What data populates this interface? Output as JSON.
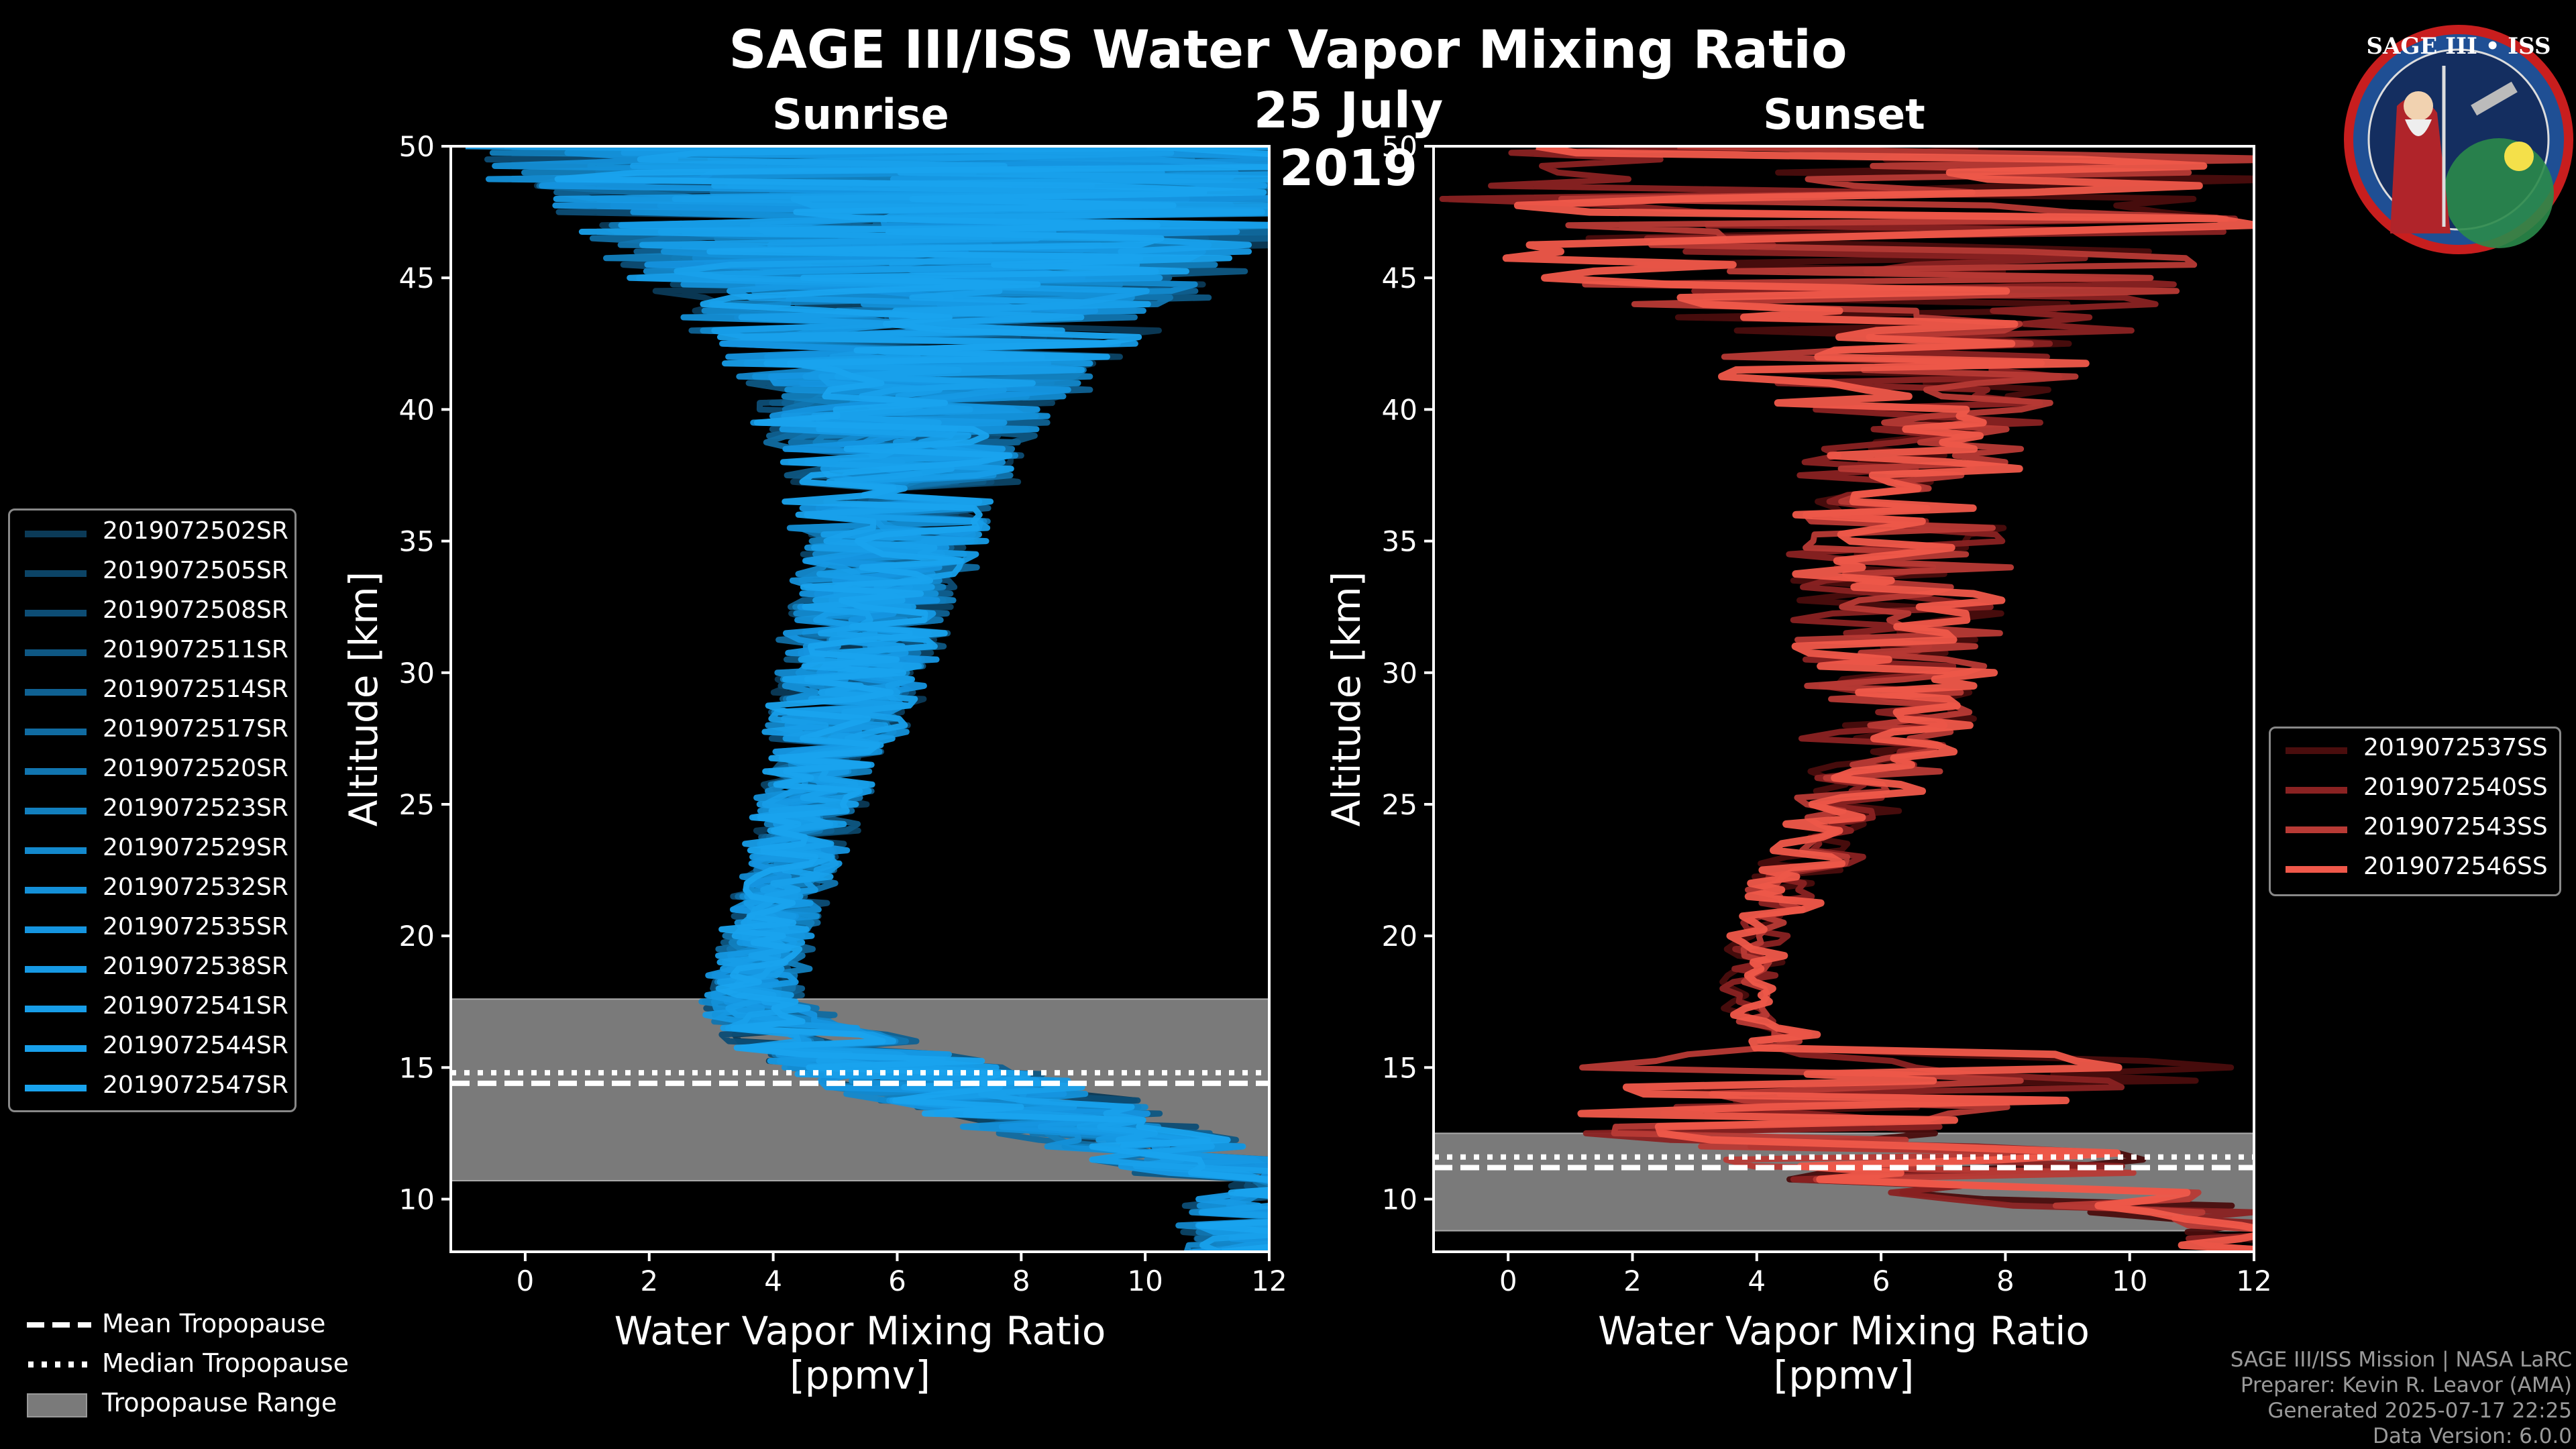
{
  "title": "SAGE III/ISS Water Vapor Mixing Ratio",
  "date": "25 July 2019",
  "panels": {
    "sunrise": {
      "title": "Sunrise"
    },
    "sunset": {
      "title": "Sunset"
    }
  },
  "legend_sunrise": [
    "2019072502SR",
    "2019072505SR",
    "2019072508SR",
    "2019072511SR",
    "2019072514SR",
    "2019072517SR",
    "2019072520SR",
    "2019072523SR",
    "2019072529SR",
    "2019072532SR",
    "2019072535SR",
    "2019072538SR",
    "2019072541SR",
    "2019072544SR",
    "2019072547SR"
  ],
  "legend_sunset": [
    "2019072537SS",
    "2019072540SS",
    "2019072543SS",
    "2019072546SS"
  ],
  "bottom_legend": {
    "mean": "Mean Tropopause",
    "median": "Median Tropopause",
    "range": "Tropopause Range"
  },
  "credits": {
    "line1": "SAGE III/ISS Mission | NASA LaRC",
    "line2": "Preparer: Kevin R. Leavor (AMA)",
    "line3": "Generated 2025-07-17 22:25",
    "line4": "Data Version: 6.0.0"
  },
  "logo": {
    "text": "SAGE III • ISS"
  },
  "colors": {
    "sunrise_series": [
      "#0b3a57",
      "#0c4466",
      "#0d4d75",
      "#0e5783",
      "#0f6192",
      "#106ba1",
      "#1175b0",
      "#127fbe",
      "#1389cd",
      "#1490d8",
      "#1595e0",
      "#1699e4",
      "#179de8",
      "#18a0eb",
      "#19a3ee"
    ],
    "sunset_series": [
      "#4a0d0d",
      "#8a2222",
      "#b83a35",
      "#f0584a"
    ],
    "tropopause_fill": "#7a7a7a"
  },
  "chart_data": [
    {
      "type": "line",
      "title": "Sunrise",
      "xlabel": "Water Vapor Mixing Ratio\n[ppmv]",
      "xlabel_line1": "Water Vapor Mixing Ratio",
      "xlabel_line2": "[ppmv]",
      "ylabel": "Altitude [km]",
      "xlim": [
        -1.2,
        12
      ],
      "ylim": [
        8,
        50
      ],
      "xticks": [
        0,
        2,
        4,
        6,
        8,
        10,
        12
      ],
      "yticks": [
        10,
        15,
        20,
        25,
        30,
        35,
        40,
        45,
        50
      ],
      "tropopause": {
        "mean": 14.4,
        "median": 14.8,
        "range": [
          10.7,
          17.6
        ]
      },
      "profile_shape": {
        "altitude": [
          8,
          10.5,
          12,
          13.5,
          15,
          16.5,
          17.5,
          19,
          22,
          25,
          28,
          31,
          34,
          37,
          40,
          42,
          44,
          46,
          48,
          50
        ],
        "mean": [
          12,
          12,
          10,
          8,
          6,
          4.2,
          3.6,
          3.8,
          4.2,
          4.6,
          5,
          5.4,
          5.8,
          6,
          6.2,
          6.4,
          6.6,
          6.8,
          7,
          7
        ],
        "spread": [
          1,
          1,
          1.2,
          1.5,
          1.5,
          0.8,
          0.6,
          0.5,
          0.5,
          0.6,
          0.8,
          0.9,
          1,
          1.3,
          1.8,
          2.3,
          3,
          4,
          5,
          6
        ]
      },
      "series": [
        {
          "name": "2019072502SR"
        },
        {
          "name": "2019072505SR"
        },
        {
          "name": "2019072508SR"
        },
        {
          "name": "2019072511SR"
        },
        {
          "name": "2019072514SR"
        },
        {
          "name": "2019072517SR"
        },
        {
          "name": "2019072520SR"
        },
        {
          "name": "2019072523SR"
        },
        {
          "name": "2019072529SR"
        },
        {
          "name": "2019072532SR"
        },
        {
          "name": "2019072535SR"
        },
        {
          "name": "2019072538SR"
        },
        {
          "name": "2019072541SR"
        },
        {
          "name": "2019072544SR"
        },
        {
          "name": "2019072547SR"
        }
      ]
    },
    {
      "type": "line",
      "title": "Sunset",
      "xlabel": "Water Vapor Mixing Ratio\n[ppmv]",
      "xlabel_line1": "Water Vapor Mixing Ratio",
      "xlabel_line2": "[ppmv]",
      "ylabel": "Altitude [km]",
      "xlim": [
        -1.2,
        12
      ],
      "ylim": [
        8,
        50
      ],
      "xticks": [
        0,
        2,
        4,
        6,
        8,
        10,
        12
      ],
      "yticks": [
        10,
        15,
        20,
        25,
        30,
        35,
        40,
        45,
        50
      ],
      "tropopause": {
        "mean": 11.2,
        "median": 11.6,
        "range": [
          8.8,
          12.5
        ]
      },
      "profile_shape": {
        "altitude": [
          8,
          9,
          10.5,
          12,
          12.6,
          14,
          15,
          16,
          17,
          19,
          22,
          25,
          28,
          31,
          34,
          37,
          40,
          42,
          44,
          46,
          48,
          50
        ],
        "mean": [
          12,
          12,
          8,
          6,
          4,
          6,
          6,
          4.5,
          3.8,
          3.9,
          4.6,
          5.5,
          6.2,
          6.2,
          6.3,
          6.5,
          6.5,
          6.5,
          6,
          6,
          6,
          6
        ],
        "spread": [
          1,
          1,
          2,
          3,
          2,
          4,
          5,
          0.5,
          0.3,
          0.3,
          0.5,
          0.6,
          1,
          1.3,
          1.3,
          1.3,
          1.5,
          2.5,
          3.5,
          4.5,
          5,
          5
        ]
      },
      "series": [
        {
          "name": "2019072537SS"
        },
        {
          "name": "2019072540SS"
        },
        {
          "name": "2019072543SS"
        },
        {
          "name": "2019072546SS"
        }
      ]
    }
  ]
}
